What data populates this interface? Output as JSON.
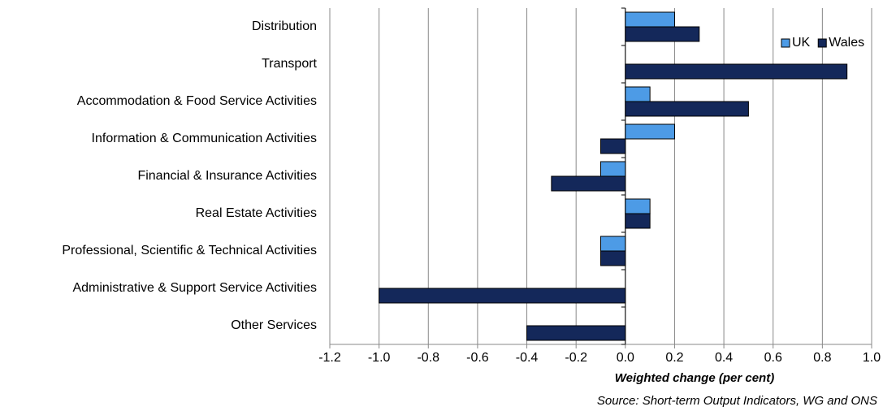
{
  "chart_data": {
    "type": "bar",
    "orientation": "horizontal",
    "x_axis_label": "Weighted change (per cent)",
    "source": "Source: Short-term Output Indicators, WG and ONS",
    "categories": [
      "Distribution",
      "Transport",
      "Accommodation & Food Service Activities",
      "Information & Communication Activities",
      "Financial & Insurance Activities",
      "Real Estate Activities",
      "Professional, Scientific & Technical Activities",
      "Administrative & Support Service Activities",
      "Other Services"
    ],
    "series": [
      {
        "name": "UK",
        "color": "#4d9be6",
        "values": [
          0.2,
          0,
          0.1,
          0.2,
          -0.1,
          0.1,
          -0.1,
          0,
          0
        ]
      },
      {
        "name": "Wales",
        "color": "#14285a",
        "values": [
          0.3,
          0.9,
          0.5,
          -0.1,
          -0.3,
          0.1,
          -0.1,
          -1.0,
          -0.4
        ]
      }
    ],
    "xlim": [
      -1.2,
      1.0
    ],
    "xticks": [
      -1.2,
      {
        "value": -1.0,
        "label": "-1.0"
      },
      -0.8,
      -0.6,
      -0.4,
      -0.2,
      {
        "value": 0,
        "label": "0.0"
      },
      0.2,
      0.4,
      0.6,
      0.8,
      {
        "value": 1.0,
        "label": "1.0"
      }
    ],
    "grid": true,
    "legend": "top-right"
  }
}
